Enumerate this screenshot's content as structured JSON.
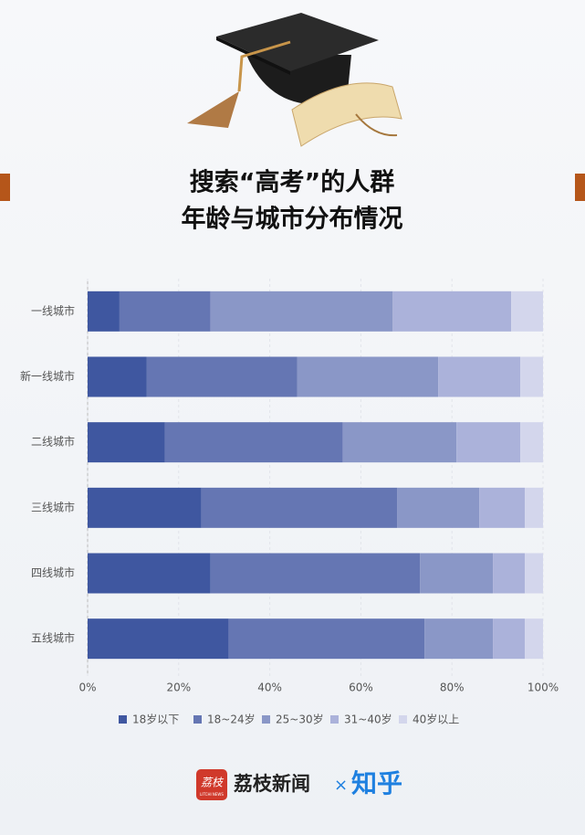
{
  "chart_data": {
    "type": "stacked-bar-horizontal",
    "title": [
      "搜索“高考”的人群",
      "年龄与城市分布情况"
    ],
    "categories": [
      "一线城市",
      "新一线城市",
      "二线城市",
      "三线城市",
      "四线城市",
      "五线城市"
    ],
    "series": [
      {
        "name": "18岁以下",
        "color": "#3f57a0",
        "values": [
          7,
          13,
          17,
          25,
          27,
          31
        ]
      },
      {
        "name": "18~24岁",
        "color": "#6576b3",
        "values": [
          20,
          33,
          39,
          43,
          46,
          43
        ]
      },
      {
        "name": "25~30岁",
        "color": "#8a97c7",
        "values": [
          40,
          31,
          25,
          18,
          16,
          15
        ]
      },
      {
        "name": "31~40岁",
        "color": "#abb2da",
        "values": [
          26,
          18,
          14,
          10,
          7,
          7
        ]
      },
      {
        "name": "40岁以上",
        "color": "#d3d6ec",
        "values": [
          7,
          5,
          5,
          4,
          4,
          4
        ]
      }
    ],
    "xlim": [
      0,
      100
    ],
    "xticks": [
      {
        "value": 0,
        "label": "0%"
      },
      {
        "value": 20,
        "label": "20%"
      },
      {
        "value": 40,
        "label": "40%"
      },
      {
        "value": 60,
        "label": "60%"
      },
      {
        "value": 80,
        "label": "80%"
      },
      {
        "value": 100,
        "label": "100%"
      }
    ],
    "grid": true
  },
  "footer": {
    "logo_icon": "荔枝",
    "logo_small": "LITCHI NEWS",
    "brand": "荔枝新闻",
    "separator": "×",
    "partner": "知乎"
  }
}
